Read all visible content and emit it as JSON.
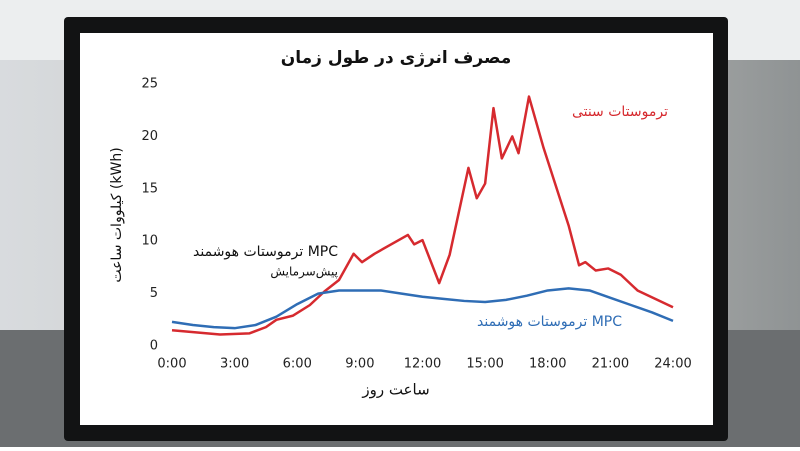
{
  "chart_data": {
    "type": "line",
    "title": "مصرف انرژی در طول زمان",
    "x_label": "ساعت روز",
    "y_label": "کیلووات ساعت (kWh)",
    "xlim": [
      0,
      24
    ],
    "xticks": [
      {
        "value": 0,
        "label": "0:00"
      },
      {
        "value": 3,
        "label": "3:00"
      },
      {
        "value": 6,
        "label": "6:00"
      },
      {
        "value": 9,
        "label": "9:00"
      },
      {
        "value": 12,
        "label": "12:00"
      },
      {
        "value": 15,
        "label": "15:00"
      },
      {
        "value": 18,
        "label": "18:00"
      },
      {
        "value": 21,
        "label": "21:00"
      },
      {
        "value": 24,
        "label": "24:00"
      }
    ],
    "ylim": [
      0,
      25
    ],
    "yticks": [
      0,
      5,
      10,
      15,
      20,
      25
    ],
    "series": [
      {
        "name": "ترموستات سنتی",
        "color": "#d62a2f",
        "x": [
          0,
          2.3,
          3.7,
          4.5,
          5.0,
          5.8,
          6.6,
          7.3,
          8.0,
          8.7,
          9.1,
          9.7,
          11.3,
          11.6,
          12.0,
          12.8,
          13.3,
          14.2,
          14.6,
          15.0,
          15.4,
          15.8,
          16.3,
          16.6,
          17.1,
          17.8,
          19.0,
          19.5,
          19.8,
          20.3,
          20.9,
          21.5,
          22.3,
          24
        ],
        "values": [
          1.5,
          1.1,
          1.2,
          1.8,
          2.5,
          2.9,
          3.9,
          5.2,
          6.3,
          8.8,
          8.0,
          8.8,
          10.6,
          9.7,
          10.1,
          6.0,
          8.7,
          17.0,
          14.1,
          15.5,
          22.7,
          17.9,
          20.0,
          18.4,
          23.8,
          18.9,
          11.5,
          7.7,
          8.0,
          7.2,
          7.4,
          6.8,
          5.3,
          3.7
        ]
      },
      {
        "name": "ترموستات هوشمند MPC",
        "color": "#2f6db5",
        "x": [
          0,
          1,
          2,
          3,
          4,
          5,
          6,
          7,
          8,
          9,
          10,
          11,
          12,
          13,
          14,
          15,
          16,
          17,
          18,
          19,
          20,
          21,
          22,
          23,
          24
        ],
        "values": [
          2.3,
          2.0,
          1.8,
          1.7,
          2.0,
          2.8,
          4.0,
          5.0,
          5.3,
          5.3,
          5.3,
          5.0,
          4.7,
          4.5,
          4.3,
          4.2,
          4.4,
          4.8,
          5.3,
          5.5,
          5.3,
          4.6,
          3.9,
          3.2,
          2.4
        ]
      }
    ],
    "annotations": [
      "ترموستات هوشمند MPC",
      "پیش‌سرمایش"
    ]
  }
}
